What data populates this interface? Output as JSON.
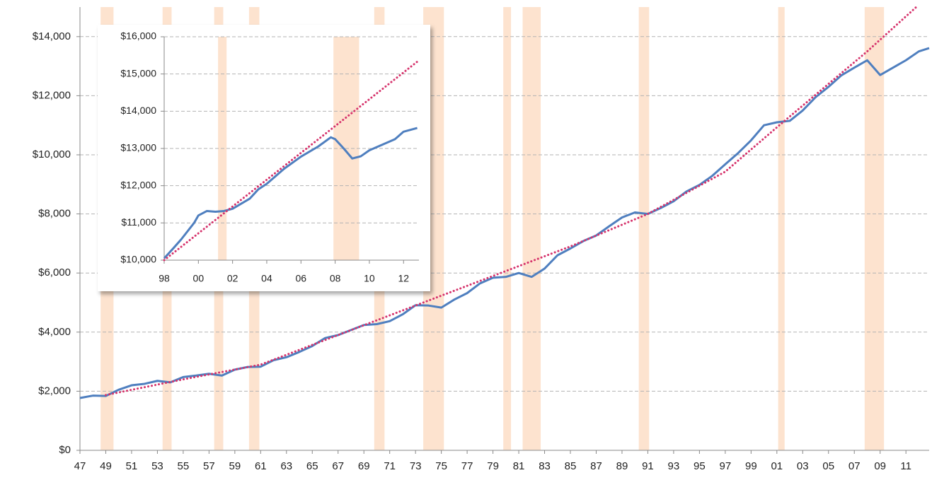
{
  "chart_data": [
    {
      "type": "line",
      "xlim": [
        1947,
        2012.8
      ],
      "ylim": [
        0,
        15000
      ],
      "xticks": [
        {
          "value": 1947,
          "label": "47"
        },
        {
          "value": 1949,
          "label": "49"
        },
        {
          "value": 1951,
          "label": "51"
        },
        {
          "value": 1953,
          "label": "53"
        },
        {
          "value": 1955,
          "label": "55"
        },
        {
          "value": 1957,
          "label": "57"
        },
        {
          "value": 1959,
          "label": "59"
        },
        {
          "value": 1961,
          "label": "61"
        },
        {
          "value": 1963,
          "label": "63"
        },
        {
          "value": 1965,
          "label": "65"
        },
        {
          "value": 1967,
          "label": "67"
        },
        {
          "value": 1969,
          "label": "69"
        },
        {
          "value": 1971,
          "label": "71"
        },
        {
          "value": 1973,
          "label": "73"
        },
        {
          "value": 1975,
          "label": "75"
        },
        {
          "value": 1977,
          "label": "77"
        },
        {
          "value": 1979,
          "label": "79"
        },
        {
          "value": 1981,
          "label": "81"
        },
        {
          "value": 1983,
          "label": "83"
        },
        {
          "value": 1985,
          "label": "85"
        },
        {
          "value": 1987,
          "label": "87"
        },
        {
          "value": 1989,
          "label": "89"
        },
        {
          "value": 1991,
          "label": "91"
        },
        {
          "value": 1993,
          "label": "93"
        },
        {
          "value": 1995,
          "label": "95"
        },
        {
          "value": 1997,
          "label": "97"
        },
        {
          "value": 1999,
          "label": "99"
        },
        {
          "value": 2001,
          "label": "01"
        },
        {
          "value": 2003,
          "label": "03"
        },
        {
          "value": 2005,
          "label": "05"
        },
        {
          "value": 2007,
          "label": "07"
        },
        {
          "value": 2009,
          "label": "09"
        },
        {
          "value": 2011,
          "label": "11"
        }
      ],
      "yticks": [
        {
          "value": 0,
          "label": "$0"
        },
        {
          "value": 2000,
          "label": "$2,000"
        },
        {
          "value": 4000,
          "label": "$4,000"
        },
        {
          "value": 6000,
          "label": "$6,000"
        },
        {
          "value": 8000,
          "label": "$8,000"
        },
        {
          "value": 10000,
          "label": "$10,000"
        },
        {
          "value": 12000,
          "label": "$12,000"
        },
        {
          "value": 14000,
          "label": "$14,000"
        }
      ],
      "grid": true,
      "recession_color": "#fde3cf",
      "recessions": [
        {
          "start": 1948.6,
          "end": 1949.6
        },
        {
          "start": 1953.4,
          "end": 1954.1
        },
        {
          "start": 1957.4,
          "end": 1958.1
        },
        {
          "start": 1960.1,
          "end": 1960.9
        },
        {
          "start": 1969.8,
          "end": 1970.6
        },
        {
          "start": 1973.6,
          "end": 1975.2
        },
        {
          "start": 1979.8,
          "end": 1980.4
        },
        {
          "start": 1981.3,
          "end": 1982.7
        },
        {
          "start": 1990.3,
          "end": 1991.1
        },
        {
          "start": 2001.1,
          "end": 2001.6
        },
        {
          "start": 2007.8,
          "end": 2009.3
        }
      ],
      "series": [
        {
          "color": "#4f7fbf",
          "style": "solid",
          "x": [
            1947,
            1948,
            1949,
            1950,
            1951,
            1952,
            1953,
            1954,
            1955,
            1956,
            1957,
            1958,
            1959,
            1960,
            1961,
            1962,
            1963,
            1964,
            1965,
            1966,
            1967,
            1968,
            1969,
            1970,
            1971,
            1972,
            1973,
            1974,
            1975,
            1976,
            1977,
            1978,
            1979,
            1980,
            1981,
            1982,
            1983,
            1984,
            1985,
            1986,
            1987,
            1988,
            1989,
            1990,
            1991,
            1992,
            1993,
            1994,
            1995,
            1996,
            1997,
            1998,
            1999,
            2000,
            2001,
            2002,
            2003,
            2004,
            2005,
            2006,
            2007,
            2008,
            2009,
            2010,
            2011,
            2012,
            2012.8
          ],
          "values": [
            1770,
            1850,
            1840,
            2050,
            2200,
            2250,
            2350,
            2300,
            2480,
            2530,
            2590,
            2530,
            2730,
            2820,
            2830,
            3050,
            3150,
            3330,
            3530,
            3800,
            3900,
            4070,
            4240,
            4270,
            4370,
            4600,
            4910,
            4900,
            4830,
            5100,
            5320,
            5650,
            5840,
            5870,
            6000,
            5870,
            6150,
            6600,
            6830,
            7080,
            7270,
            7580,
            7880,
            8050,
            8000,
            8200,
            8430,
            8760,
            8980,
            9290,
            9680,
            10060,
            10490,
            11000,
            11100,
            11150,
            11500,
            11950,
            12300,
            12690,
            12950,
            13200,
            12700,
            12950,
            13200,
            13500,
            13610
          ]
        },
        {
          "color": "#d6336c",
          "style": "dotted",
          "x": [
            1949,
            1955,
            1961,
            1967,
            1973,
            1979,
            1985,
            1991,
            1997,
            2001,
            2005,
            2008,
            2011.8
          ],
          "values": [
            1870,
            2400,
            2900,
            3900,
            4900,
            5900,
            6900,
            8000,
            9430,
            10930,
            12400,
            13500,
            15000
          ]
        }
      ]
    },
    {
      "type": "line",
      "xlim": [
        1998,
        2012.9
      ],
      "ylim": [
        10000,
        16000
      ],
      "xticks": [
        {
          "value": 1998,
          "label": "98"
        },
        {
          "value": 2000,
          "label": "00"
        },
        {
          "value": 2002,
          "label": "02"
        },
        {
          "value": 2004,
          "label": "04"
        },
        {
          "value": 2006,
          "label": "06"
        },
        {
          "value": 2008,
          "label": "08"
        },
        {
          "value": 2010,
          "label": "10"
        },
        {
          "value": 2012,
          "label": "12"
        }
      ],
      "yticks": [
        {
          "value": 10000,
          "label": "$10,000"
        },
        {
          "value": 11000,
          "label": "$11,000"
        },
        {
          "value": 12000,
          "label": "$12,000"
        },
        {
          "value": 13000,
          "label": "$13,000"
        },
        {
          "value": 14000,
          "label": "$14,000"
        },
        {
          "value": 15000,
          "label": "$15,000"
        },
        {
          "value": 16000,
          "label": "$16,000"
        }
      ],
      "grid": true,
      "recession_color": "#fde3cf",
      "recessions": [
        {
          "start": 2001.15,
          "end": 2001.65
        },
        {
          "start": 2007.9,
          "end": 2009.4
        }
      ],
      "series": [
        {
          "color": "#4f7fbf",
          "style": "solid",
          "x": [
            1998,
            1998.5,
            1999,
            1999.75,
            2000,
            2000.5,
            2001,
            2001.5,
            2002,
            2003,
            2003.5,
            2004,
            2005,
            2006,
            2007,
            2007.75,
            2008,
            2008.5,
            2009,
            2009.5,
            2010,
            2011,
            2011.5,
            2012,
            2012.8
          ],
          "values": [
            10050,
            10300,
            10560,
            11000,
            11200,
            11320,
            11300,
            11320,
            11380,
            11650,
            11900,
            12050,
            12450,
            12780,
            13050,
            13300,
            13250,
            13000,
            12730,
            12790,
            12950,
            13150,
            13250,
            13450,
            13550
          ]
        },
        {
          "color": "#d6336c",
          "style": "dotted",
          "x": [
            1998,
            2012.8
          ],
          "values": [
            10000,
            15330
          ]
        }
      ]
    }
  ]
}
